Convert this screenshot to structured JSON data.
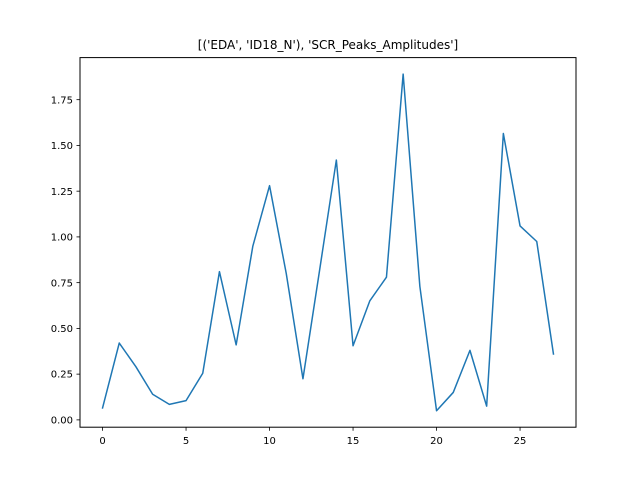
{
  "chart_data": {
    "type": "line",
    "title": "[('EDA', 'ID18_N'), 'SCR_Peaks_Amplitudes']",
    "xlabel": "",
    "ylabel": "",
    "xlim": [
      -1.35,
      28.35
    ],
    "ylim": [
      -0.04,
      1.98
    ],
    "xticks": [
      0,
      5,
      10,
      15,
      20,
      25
    ],
    "yticks": [
      0.0,
      0.25,
      0.5,
      0.75,
      1.0,
      1.25,
      1.5,
      1.75
    ],
    "ytick_labels": [
      "0.00",
      "0.25",
      "0.50",
      "0.75",
      "1.00",
      "1.25",
      "1.50",
      "1.75"
    ],
    "grid": false,
    "series": [
      {
        "color": "#1f77b4",
        "x": [
          0,
          1,
          2,
          3,
          4,
          5,
          6,
          7,
          8,
          9,
          10,
          11,
          12,
          13,
          14,
          15,
          16,
          17,
          18,
          19,
          20,
          21,
          22,
          23,
          24,
          25,
          26,
          27
        ],
        "y": [
          0.065,
          0.42,
          0.29,
          0.14,
          0.085,
          0.105,
          0.255,
          0.81,
          0.41,
          0.95,
          1.28,
          0.8,
          0.225,
          0.82,
          1.42,
          0.405,
          0.65,
          0.78,
          1.89,
          0.73,
          0.05,
          0.15,
          0.38,
          0.075,
          1.565,
          1.06,
          0.975,
          0.36
        ]
      }
    ]
  }
}
